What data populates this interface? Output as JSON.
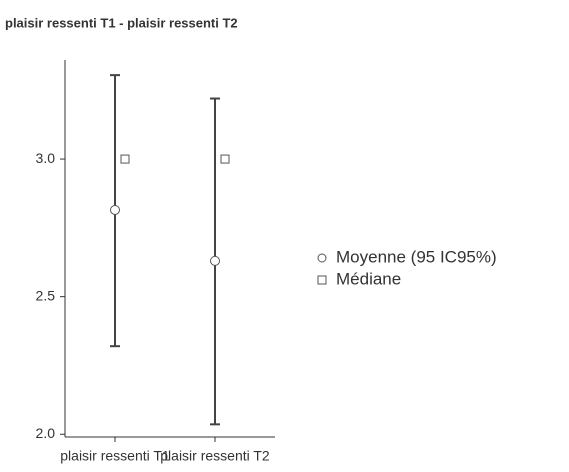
{
  "chart_data": {
    "type": "errorbar",
    "title": "plaisir ressenti T1 - plaisir ressenti T2",
    "categories": [
      "plaisir ressenti T1",
      "plaisir ressenti T2"
    ],
    "series": [
      {
        "name": "Moyenne (95 IC95%)",
        "color": "#555555",
        "values": [
          2.815,
          2.63
        ],
        "lower": [
          2.32,
          2.036
        ],
        "upper": [
          3.305,
          3.22
        ]
      },
      {
        "name": "Médiane",
        "color": "#555555",
        "values": [
          3.0,
          3.0
        ]
      }
    ],
    "ylim": [
      1.99,
      3.36
    ],
    "yticks": [
      {
        "value": 2.0,
        "label": "2.0"
      },
      {
        "value": 2.5,
        "label": "2.5"
      },
      {
        "value": 3.0,
        "label": "3.0"
      }
    ],
    "legend": "right"
  }
}
